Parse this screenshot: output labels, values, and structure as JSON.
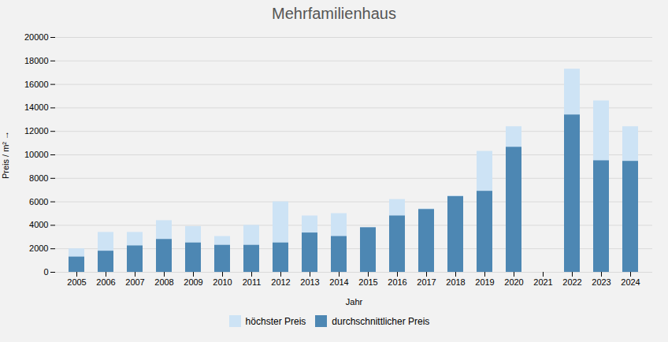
{
  "chart_data": {
    "type": "bar",
    "title": "Mehrfamilienhaus",
    "xlabel": "Jahr",
    "ylabel": "Preis / m²",
    "categories": [
      "2005",
      "2006",
      "2007",
      "2008",
      "2009",
      "2010",
      "2011",
      "2012",
      "2013",
      "2014",
      "2015",
      "2016",
      "2017",
      "2018",
      "2019",
      "2020",
      "2021",
      "2022",
      "2023",
      "2024"
    ],
    "series": [
      {
        "name": "höchster Preis",
        "color": "#cde3f5",
        "values": [
          2000,
          3400,
          3400,
          4400,
          3900,
          3050,
          4000,
          6000,
          4800,
          5000,
          3800,
          6200,
          5400,
          6500,
          10300,
          12400,
          0,
          17300,
          14600,
          12400
        ]
      },
      {
        "name": "durchschnittlicher Preis",
        "color": "#4d87b3",
        "values": [
          1300,
          1800,
          2250,
          2800,
          2500,
          2300,
          2300,
          2500,
          3350,
          3050,
          3800,
          4800,
          5350,
          6450,
          6900,
          10650,
          0,
          13400,
          9500,
          9450
        ]
      }
    ],
    "ylim": [
      0,
      20000
    ],
    "yticks": [
      0,
      2000,
      4000,
      6000,
      8000,
      10000,
      12000,
      14000,
      16000,
      18000,
      20000
    ],
    "grid": true,
    "stacked": false,
    "legend": "bottom"
  }
}
